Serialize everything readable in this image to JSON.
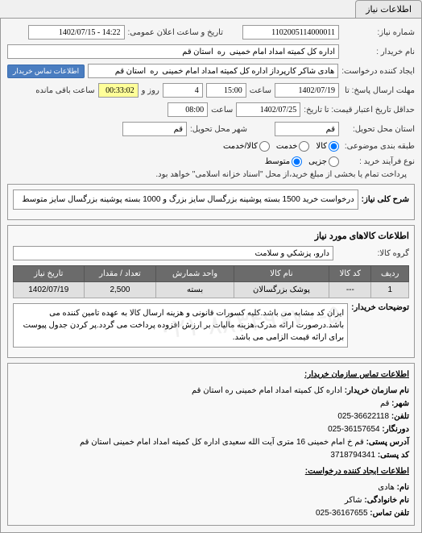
{
  "tab": {
    "title": "اطلاعات نیاز"
  },
  "header": {
    "need_number_label": "شماره نیاز:",
    "need_number": "1102005114000011",
    "public_announce_label": "تاریخ و ساعت اعلان عمومی:",
    "public_announce": "14:22 - 1402/07/15",
    "buyer_name_label": "نام خریدار :",
    "buyer_name": "اداره کل کمیته امداد امام خمینی  ره  استان قم",
    "creator_label": "ایجاد کننده درخواست:",
    "creator": "هادی شاکر کارپرداز اداره کل کمیته امداد امام خمینی  ره  استان قم",
    "contact_btn": "اطلاعات تماس خریدار",
    "response_deadline_label": "مهلت ارسال پاسخ: تا",
    "response_date": "1402/07/19",
    "response_time_label": "ساعت",
    "response_time": "15:00",
    "days_label": "روز و",
    "days": "4",
    "remaining_label": "ساعت باقی مانده",
    "remaining_time": "00:33:02",
    "price_deadline_label": "حداقل تاریخ اعتبار قیمت: تا تاریخ:",
    "price_date": "1402/07/25",
    "price_time_label": "ساعت",
    "price_time": "08:00",
    "province_label": "استان محل تحویل:",
    "province": "قم",
    "city_label": "شهر محل تحویل:",
    "city": "قم",
    "packaging_label": "طبقه بندی موضوعی:",
    "pkg_opt1": "کالا",
    "pkg_opt2": "خدمت",
    "pkg_opt3": "کالا/خدمت",
    "payment_type_label": "نوع فرآیند خرید :",
    "pay_opt1": "جزیی",
    "pay_opt2": "متوسط",
    "payment_note": "پرداخت تمام یا بخشی از مبلغ خرید،از محل \"اسناد خزانه اسلامی\" خواهد بود."
  },
  "desc_section": {
    "title_label": "شرح کلی نیاز:",
    "title_text": "درخواست خرید 1500 بسته پوشینه بزرگسال سایز بزرگ و 1000 بسته پوشینه بزرگسال سایز متوسط"
  },
  "goods_section": {
    "title": "اطلاعات کالاهای مورد نیاز",
    "group_label": "گروه کالا:",
    "group_value": "دارو، پزشكي و سلامت",
    "table": {
      "headers": [
        "ردیف",
        "کد کالا",
        "نام کالا",
        "واحد شمارش",
        "تعداد / مقدار",
        "تاریخ نیاز"
      ],
      "rows": [
        [
          "1",
          "---",
          "پوشک بزرگسالان",
          "بسته",
          "2,500",
          "1402/07/19"
        ]
      ]
    },
    "notes_label": "توضیحات خریدار:",
    "notes_text": "ایران کد مشابه می باشد.کلیه کسورات قانونی و هزینه ارسال کالا به عهده تامین کننده می باشد.درصورت ارائه مدرک،هزینه مالیات بر ارزش افزوده پرداخت می گردد.پر کردن جدول پیوست برای ارائه قیمت الزامی می باشد."
  },
  "footer": {
    "title": "اطلاعات تماس سازمان خریدار:",
    "org_label": "نام سازمان خریدار:",
    "org_value": "اداره کل کمیته امداد امام خمینی ره استان قم",
    "city_label": "شهر:",
    "city_value": "قم",
    "phone_label": "تلفن:",
    "phone_value": "36622118-025",
    "fax_label": "دورنگار:",
    "fax_value": "36157654-025",
    "address_label": "آدرس پستی:",
    "address_value": "قم خ امام خمینی 16 متری آیت الله سعیدی اداره کل کمیته امداد امام خمینی استان قم",
    "postal_label": "کد پستی:",
    "postal_value": "3718794341",
    "creator_info_label": "اطلاعات ایجاد کننده درخواست:",
    "name_label": "نام:",
    "name_value": "هادی",
    "lastname_label": "نام خانوادگی:",
    "lastname_value": "شاکر",
    "contact_phone_label": "تلفن تماس:",
    "contact_phone_value": "36167655-025"
  },
  "watermark": "۰۲۱-۸۸۳۴۹۶۷۰-۵"
}
